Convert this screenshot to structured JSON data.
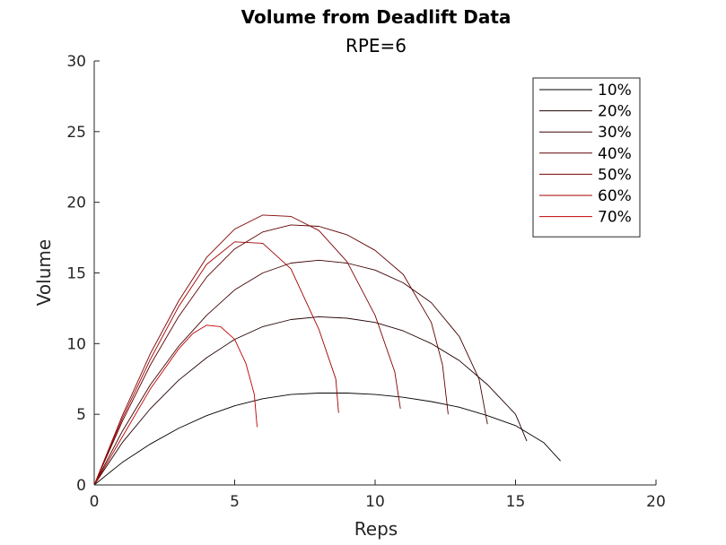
{
  "chart_data": {
    "type": "line",
    "title": "Volume from Deadlift Data",
    "subtitle": "RPE=6",
    "xlabel": "Reps",
    "ylabel": "Volume",
    "xlim": [
      0,
      20
    ],
    "ylim": [
      0,
      30
    ],
    "xticks": [
      0,
      5,
      10,
      15,
      20
    ],
    "yticks": [
      0,
      5,
      10,
      15,
      20,
      25,
      30
    ],
    "grid": false,
    "legend_position": "top-right",
    "series": [
      {
        "name": "10%",
        "color": "#000000",
        "x": [
          0,
          1,
          2,
          3,
          4,
          5,
          6,
          7,
          8,
          9,
          10,
          11,
          12,
          13,
          14,
          15,
          16,
          16.6
        ],
        "y": [
          0,
          1.6,
          2.9,
          4.0,
          4.9,
          5.6,
          6.1,
          6.4,
          6.5,
          6.5,
          6.4,
          6.2,
          5.9,
          5.5,
          4.9,
          4.2,
          3.0,
          1.7
        ]
      },
      {
        "name": "20%",
        "color": "#200000",
        "x": [
          0,
          1,
          2,
          3,
          4,
          5,
          6,
          7,
          8,
          9,
          10,
          11,
          12,
          13,
          14,
          15,
          15.4
        ],
        "y": [
          0,
          3.0,
          5.4,
          7.4,
          9.0,
          10.3,
          11.2,
          11.7,
          11.9,
          11.8,
          11.5,
          10.9,
          10.0,
          8.8,
          7.1,
          5.0,
          3.1
        ]
      },
      {
        "name": "30%",
        "color": "#400000",
        "x": [
          0,
          1,
          2,
          3,
          4,
          5,
          6,
          7,
          8,
          9,
          10,
          11,
          12,
          13,
          13.7,
          14.0
        ],
        "y": [
          0,
          3.8,
          7.1,
          9.8,
          12.0,
          13.8,
          15.0,
          15.7,
          15.9,
          15.7,
          15.2,
          14.3,
          12.9,
          10.5,
          7.5,
          4.3
        ]
      },
      {
        "name": "40%",
        "color": "#600000",
        "x": [
          0,
          1,
          2,
          3,
          4,
          5,
          6,
          7,
          8,
          9,
          10,
          11,
          12,
          12.4,
          12.6
        ],
        "y": [
          0,
          4.5,
          8.5,
          11.9,
          14.7,
          16.7,
          17.9,
          18.4,
          18.3,
          17.7,
          16.6,
          14.9,
          11.5,
          8.5,
          5.0
        ]
      },
      {
        "name": "50%",
        "color": "#800000",
        "x": [
          0,
          1,
          2,
          3,
          4,
          5,
          6,
          7,
          8,
          9,
          10,
          10.7,
          10.9
        ],
        "y": [
          0,
          4.9,
          9.3,
          13.0,
          16.1,
          18.1,
          19.1,
          19.0,
          18.0,
          15.8,
          12.0,
          8.0,
          5.4
        ]
      },
      {
        "name": "60%",
        "color": "#A00000",
        "x": [
          0,
          1,
          2,
          3,
          4,
          5,
          6,
          7,
          8,
          8.6,
          8.7
        ],
        "y": [
          0,
          4.7,
          8.9,
          12.6,
          15.6,
          17.2,
          17.1,
          15.3,
          11.0,
          7.5,
          5.1
        ]
      },
      {
        "name": "70%",
        "color": "#C00000",
        "x": [
          0,
          1,
          2,
          3,
          3.5,
          4,
          4.5,
          5,
          5.4,
          5.7,
          5.8
        ],
        "y": [
          0,
          3.4,
          6.8,
          9.6,
          10.7,
          11.3,
          11.2,
          10.3,
          8.6,
          6.4,
          4.1
        ]
      }
    ]
  }
}
